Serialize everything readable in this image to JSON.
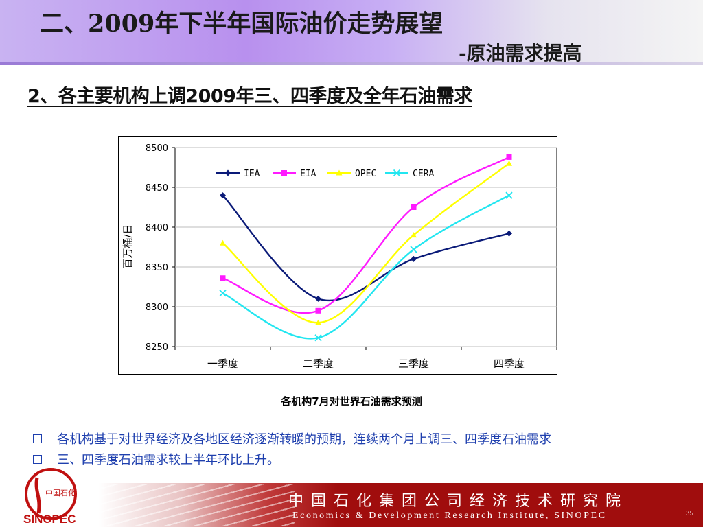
{
  "header": {
    "title": "二、2009年下半年国际油价走势展望",
    "subtitle": "-原油需求提高"
  },
  "section_heading": "2、各主要机构上调2009年三、四季度及全年石油需求",
  "chart_caption": "各机构7月对世界石油需求预测",
  "chart_data": {
    "type": "line",
    "categories": [
      "一季度",
      "二季度",
      "三季度",
      "四季度"
    ],
    "ylabel": "百万桶/日",
    "ylim": [
      8250,
      8500
    ],
    "yticks": [
      8250,
      8300,
      8350,
      8400,
      8450,
      8500
    ],
    "grid": true,
    "legend_position": "top",
    "smooth": true,
    "series": [
      {
        "name": "IEA",
        "color": "#0a1a78",
        "marker": "diamond",
        "values": [
          8440,
          8310,
          8360,
          8392
        ]
      },
      {
        "name": "EIA",
        "color": "#ff1aff",
        "marker": "square",
        "values": [
          8336,
          8295,
          8425,
          8488
        ]
      },
      {
        "name": "OPEC",
        "color": "#ffff00",
        "marker": "triangle",
        "values": [
          8380,
          8280,
          8390,
          8480
        ]
      },
      {
        "name": "CERA",
        "color": "#22e6f0",
        "marker": "x",
        "values": [
          8317,
          8261,
          8372,
          8440
        ]
      }
    ]
  },
  "bullets": [
    "各机构基于对世界经济及各地区经济逐渐转暖的预期，连续两个月上调三、四季度石油需求",
    "三、四季度石油需求较上半年环比上升。"
  ],
  "footer": {
    "org_cn": "中国石化集团公司经济技术研究院",
    "org_en": "Economics & Development Research Institute, SINOPEC",
    "page_number": "35"
  },
  "logo": {
    "brand_text": "SINOPEC",
    "cn_text": "中国石化",
    "color": "#c01010"
  }
}
